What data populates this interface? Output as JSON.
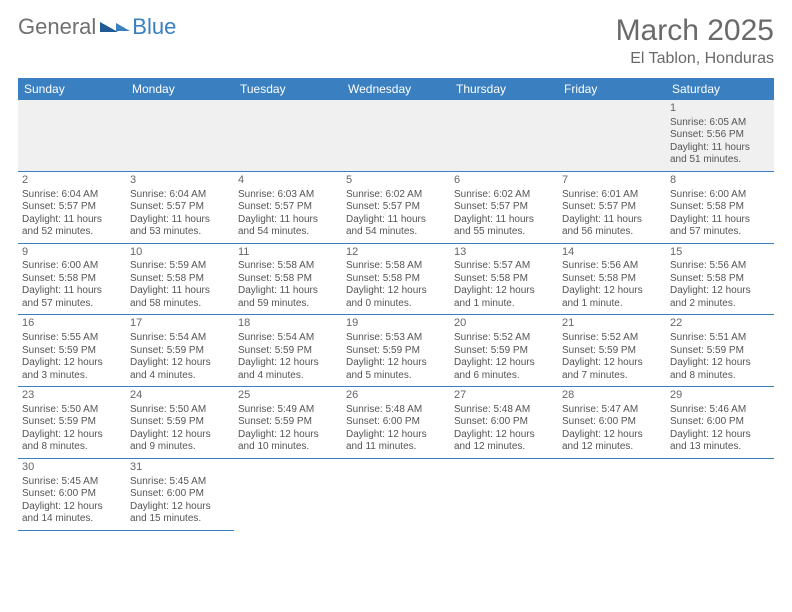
{
  "brand": {
    "part1": "General",
    "part2": "Blue"
  },
  "title": "March 2025",
  "location": "El Tablon, Honduras",
  "colors": {
    "header_bg": "#3a7fc0",
    "header_text": "#ffffff",
    "rule": "#3a7fc0",
    "text": "#555555",
    "muted_bg": "#f0f0f0",
    "page_bg": "#ffffff"
  },
  "weekdays": [
    "Sunday",
    "Monday",
    "Tuesday",
    "Wednesday",
    "Thursday",
    "Friday",
    "Saturday"
  ],
  "weeks": [
    [
      null,
      null,
      null,
      null,
      null,
      null,
      {
        "n": "1",
        "sr": "Sunrise: 6:05 AM",
        "ss": "Sunset: 5:56 PM",
        "d1": "Daylight: 11 hours",
        "d2": "and 51 minutes."
      }
    ],
    [
      {
        "n": "2",
        "sr": "Sunrise: 6:04 AM",
        "ss": "Sunset: 5:57 PM",
        "d1": "Daylight: 11 hours",
        "d2": "and 52 minutes."
      },
      {
        "n": "3",
        "sr": "Sunrise: 6:04 AM",
        "ss": "Sunset: 5:57 PM",
        "d1": "Daylight: 11 hours",
        "d2": "and 53 minutes."
      },
      {
        "n": "4",
        "sr": "Sunrise: 6:03 AM",
        "ss": "Sunset: 5:57 PM",
        "d1": "Daylight: 11 hours",
        "d2": "and 54 minutes."
      },
      {
        "n": "5",
        "sr": "Sunrise: 6:02 AM",
        "ss": "Sunset: 5:57 PM",
        "d1": "Daylight: 11 hours",
        "d2": "and 54 minutes."
      },
      {
        "n": "6",
        "sr": "Sunrise: 6:02 AM",
        "ss": "Sunset: 5:57 PM",
        "d1": "Daylight: 11 hours",
        "d2": "and 55 minutes."
      },
      {
        "n": "7",
        "sr": "Sunrise: 6:01 AM",
        "ss": "Sunset: 5:57 PM",
        "d1": "Daylight: 11 hours",
        "d2": "and 56 minutes."
      },
      {
        "n": "8",
        "sr": "Sunrise: 6:00 AM",
        "ss": "Sunset: 5:58 PM",
        "d1": "Daylight: 11 hours",
        "d2": "and 57 minutes."
      }
    ],
    [
      {
        "n": "9",
        "sr": "Sunrise: 6:00 AM",
        "ss": "Sunset: 5:58 PM",
        "d1": "Daylight: 11 hours",
        "d2": "and 57 minutes."
      },
      {
        "n": "10",
        "sr": "Sunrise: 5:59 AM",
        "ss": "Sunset: 5:58 PM",
        "d1": "Daylight: 11 hours",
        "d2": "and 58 minutes."
      },
      {
        "n": "11",
        "sr": "Sunrise: 5:58 AM",
        "ss": "Sunset: 5:58 PM",
        "d1": "Daylight: 11 hours",
        "d2": "and 59 minutes."
      },
      {
        "n": "12",
        "sr": "Sunrise: 5:58 AM",
        "ss": "Sunset: 5:58 PM",
        "d1": "Daylight: 12 hours",
        "d2": "and 0 minutes."
      },
      {
        "n": "13",
        "sr": "Sunrise: 5:57 AM",
        "ss": "Sunset: 5:58 PM",
        "d1": "Daylight: 12 hours",
        "d2": "and 1 minute."
      },
      {
        "n": "14",
        "sr": "Sunrise: 5:56 AM",
        "ss": "Sunset: 5:58 PM",
        "d1": "Daylight: 12 hours",
        "d2": "and 1 minute."
      },
      {
        "n": "15",
        "sr": "Sunrise: 5:56 AM",
        "ss": "Sunset: 5:58 PM",
        "d1": "Daylight: 12 hours",
        "d2": "and 2 minutes."
      }
    ],
    [
      {
        "n": "16",
        "sr": "Sunrise: 5:55 AM",
        "ss": "Sunset: 5:59 PM",
        "d1": "Daylight: 12 hours",
        "d2": "and 3 minutes."
      },
      {
        "n": "17",
        "sr": "Sunrise: 5:54 AM",
        "ss": "Sunset: 5:59 PM",
        "d1": "Daylight: 12 hours",
        "d2": "and 4 minutes."
      },
      {
        "n": "18",
        "sr": "Sunrise: 5:54 AM",
        "ss": "Sunset: 5:59 PM",
        "d1": "Daylight: 12 hours",
        "d2": "and 4 minutes."
      },
      {
        "n": "19",
        "sr": "Sunrise: 5:53 AM",
        "ss": "Sunset: 5:59 PM",
        "d1": "Daylight: 12 hours",
        "d2": "and 5 minutes."
      },
      {
        "n": "20",
        "sr": "Sunrise: 5:52 AM",
        "ss": "Sunset: 5:59 PM",
        "d1": "Daylight: 12 hours",
        "d2": "and 6 minutes."
      },
      {
        "n": "21",
        "sr": "Sunrise: 5:52 AM",
        "ss": "Sunset: 5:59 PM",
        "d1": "Daylight: 12 hours",
        "d2": "and 7 minutes."
      },
      {
        "n": "22",
        "sr": "Sunrise: 5:51 AM",
        "ss": "Sunset: 5:59 PM",
        "d1": "Daylight: 12 hours",
        "d2": "and 8 minutes."
      }
    ],
    [
      {
        "n": "23",
        "sr": "Sunrise: 5:50 AM",
        "ss": "Sunset: 5:59 PM",
        "d1": "Daylight: 12 hours",
        "d2": "and 8 minutes."
      },
      {
        "n": "24",
        "sr": "Sunrise: 5:50 AM",
        "ss": "Sunset: 5:59 PM",
        "d1": "Daylight: 12 hours",
        "d2": "and 9 minutes."
      },
      {
        "n": "25",
        "sr": "Sunrise: 5:49 AM",
        "ss": "Sunset: 5:59 PM",
        "d1": "Daylight: 12 hours",
        "d2": "and 10 minutes."
      },
      {
        "n": "26",
        "sr": "Sunrise: 5:48 AM",
        "ss": "Sunset: 6:00 PM",
        "d1": "Daylight: 12 hours",
        "d2": "and 11 minutes."
      },
      {
        "n": "27",
        "sr": "Sunrise: 5:48 AM",
        "ss": "Sunset: 6:00 PM",
        "d1": "Daylight: 12 hours",
        "d2": "and 12 minutes."
      },
      {
        "n": "28",
        "sr": "Sunrise: 5:47 AM",
        "ss": "Sunset: 6:00 PM",
        "d1": "Daylight: 12 hours",
        "d2": "and 12 minutes."
      },
      {
        "n": "29",
        "sr": "Sunrise: 5:46 AM",
        "ss": "Sunset: 6:00 PM",
        "d1": "Daylight: 12 hours",
        "d2": "and 13 minutes."
      }
    ],
    [
      {
        "n": "30",
        "sr": "Sunrise: 5:45 AM",
        "ss": "Sunset: 6:00 PM",
        "d1": "Daylight: 12 hours",
        "d2": "and 14 minutes."
      },
      {
        "n": "31",
        "sr": "Sunrise: 5:45 AM",
        "ss": "Sunset: 6:00 PM",
        "d1": "Daylight: 12 hours",
        "d2": "and 15 minutes."
      },
      null,
      null,
      null,
      null,
      null
    ]
  ]
}
